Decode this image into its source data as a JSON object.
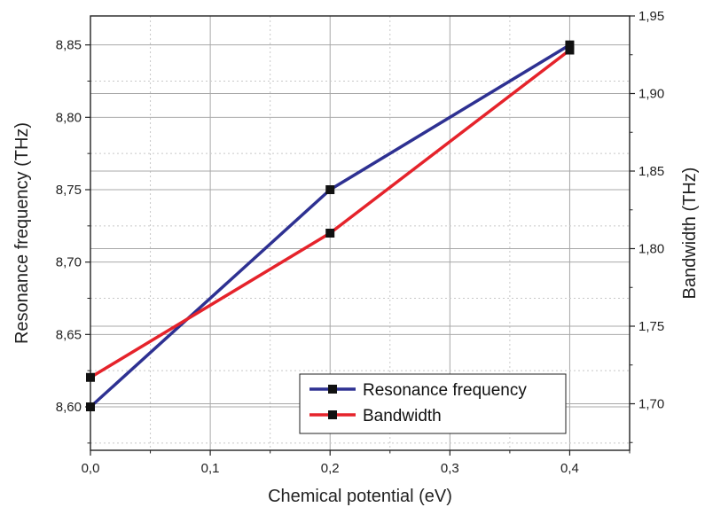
{
  "chart_data": {
    "type": "line",
    "title": "",
    "xlabel": "Chemical potential (eV)",
    "ylabel_left": "Resonance frequency (THz)",
    "ylabel_right": "Bandwidth (THz)",
    "xlim": [
      0,
      0.45
    ],
    "ylim_left": [
      8.57,
      8.87
    ],
    "ylim_right": [
      1.67,
      1.95
    ],
    "x_ticks": [
      0,
      0.1,
      0.2,
      0.3,
      0.4
    ],
    "x_tick_labels": [
      "0,0",
      "0,1",
      "0,2",
      "0,3",
      "0,4"
    ],
    "y_left_ticks": [
      8.6,
      8.65,
      8.7,
      8.75,
      8.8,
      8.85
    ],
    "y_left_tick_labels": [
      "8,60",
      "8,65",
      "8,70",
      "8,75",
      "8,80",
      "8,85"
    ],
    "y_right_ticks": [
      1.7,
      1.75,
      1.8,
      1.85,
      1.9,
      1.95
    ],
    "y_right_tick_labels": [
      "1,70",
      "1,75",
      "1,80",
      "1,85",
      "1,90",
      "1,95"
    ],
    "grid": true,
    "legend_position": "bottom-right",
    "series": [
      {
        "name": "Resonance frequency",
        "axis": "left",
        "color": "#2e3192",
        "x": [
          0,
          0.2,
          0.4
        ],
        "y": [
          8.6,
          8.75,
          8.85
        ]
      },
      {
        "name": "Bandwidth",
        "axis": "right",
        "color": "#e5232b",
        "x": [
          0,
          0.2,
          0.4
        ],
        "y": [
          1.717,
          1.81,
          1.928
        ]
      }
    ]
  }
}
